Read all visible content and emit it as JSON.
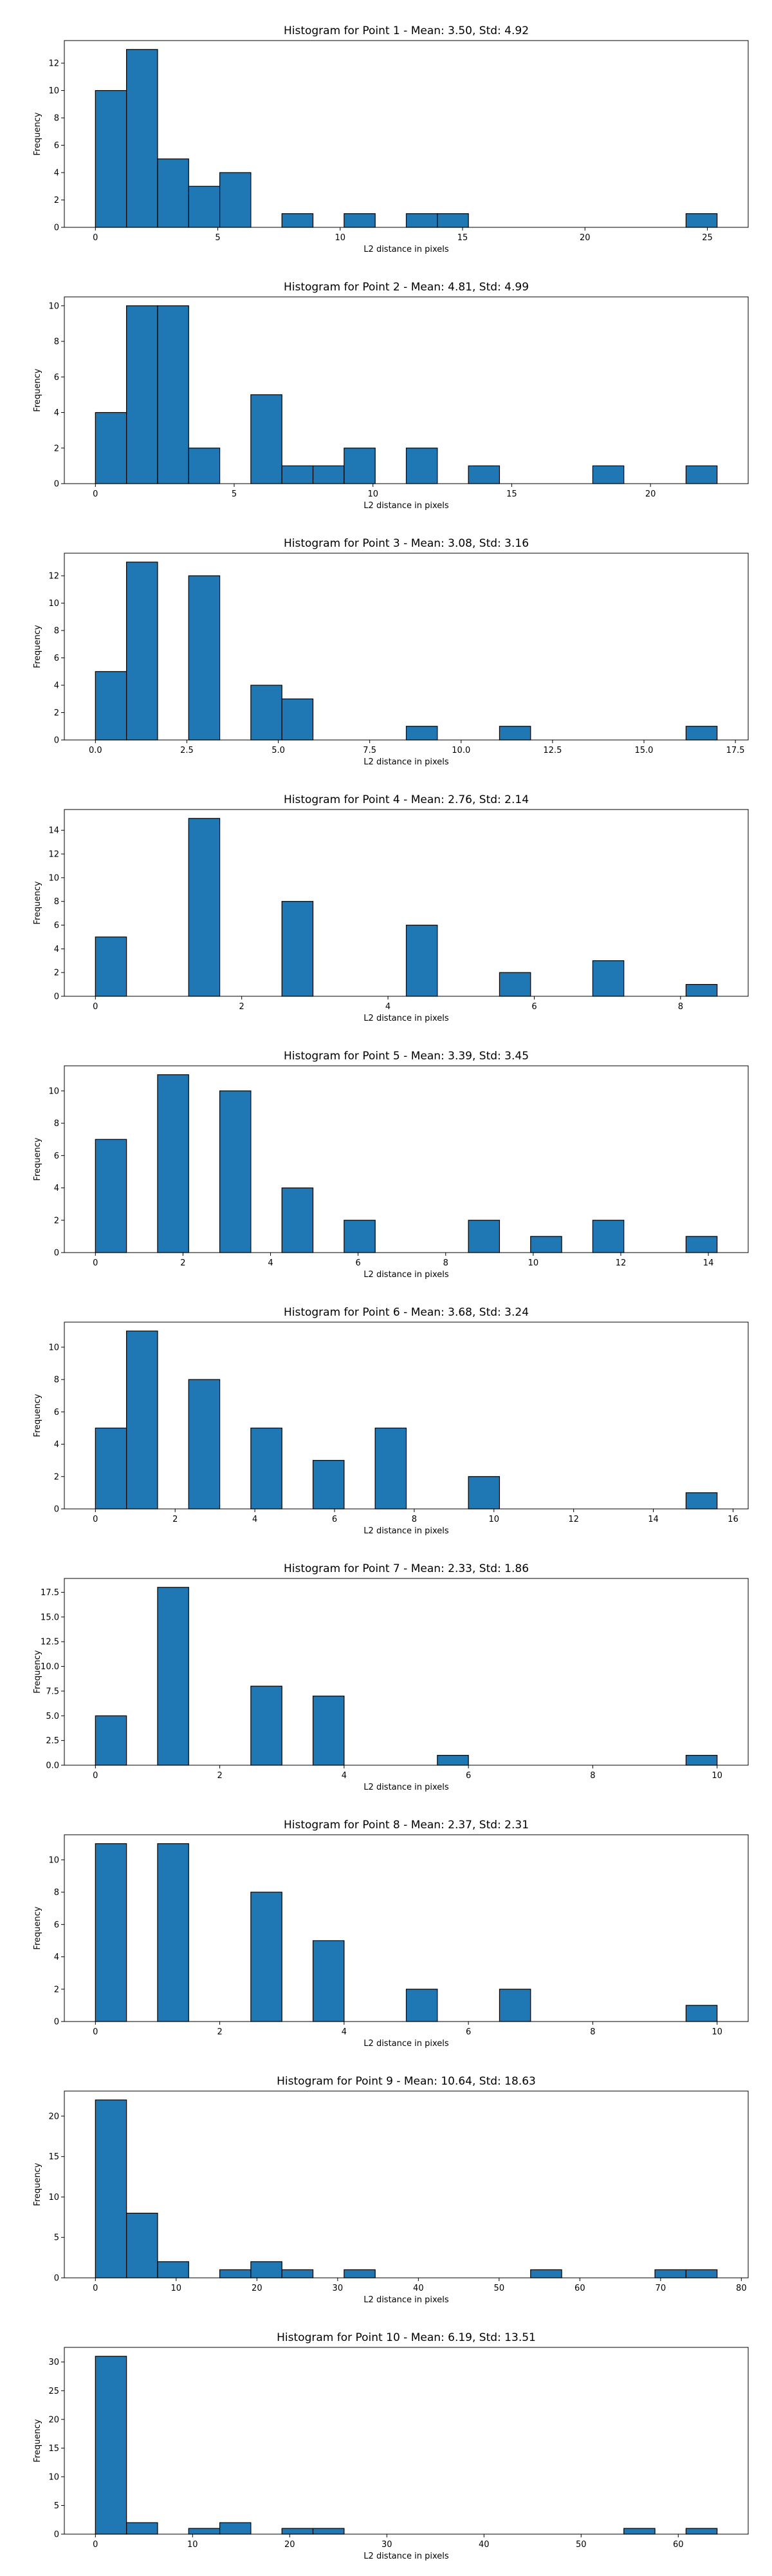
{
  "chart_data": [
    {
      "type": "bar",
      "title": "Histogram for Point 1 - Mean: 3.50, Std: 4.92",
      "xlabel": "L2 distance in pixels",
      "ylabel": "Frequency",
      "xlim": [
        -1.27,
        26.67
      ],
      "ylim": [
        0,
        13.65
      ],
      "xticks": [
        0,
        5,
        10,
        15,
        20,
        25
      ],
      "yticks": [
        0,
        2,
        4,
        6,
        8,
        10,
        12
      ],
      "bins": [
        {
          "x0": 0.0,
          "x1": 1.27,
          "count": 10
        },
        {
          "x0": 1.27,
          "x1": 2.54,
          "count": 13
        },
        {
          "x0": 2.54,
          "x1": 3.81,
          "count": 5
        },
        {
          "x0": 3.81,
          "x1": 5.08,
          "count": 3
        },
        {
          "x0": 5.08,
          "x1": 6.35,
          "count": 4
        },
        {
          "x0": 7.62,
          "x1": 8.89,
          "count": 1
        },
        {
          "x0": 10.16,
          "x1": 11.43,
          "count": 1
        },
        {
          "x0": 12.7,
          "x1": 13.97,
          "count": 1
        },
        {
          "x0": 13.97,
          "x1": 15.24,
          "count": 1
        },
        {
          "x0": 24.13,
          "x1": 25.4,
          "count": 1
        }
      ]
    },
    {
      "type": "bar",
      "title": "Histogram for Point 2 - Mean: 4.81, Std: 4.99",
      "xlabel": "L2 distance in pixels",
      "ylabel": "Frequency",
      "xlim": [
        -1.12,
        23.52
      ],
      "ylim": [
        0,
        10.5
      ],
      "xticks": [
        0,
        5,
        10,
        15,
        20
      ],
      "yticks": [
        0,
        2,
        4,
        6,
        8,
        10
      ],
      "bins": [
        {
          "x0": 0.0,
          "x1": 1.12,
          "count": 4
        },
        {
          "x0": 1.12,
          "x1": 2.24,
          "count": 10
        },
        {
          "x0": 2.24,
          "x1": 3.36,
          "count": 10
        },
        {
          "x0": 3.36,
          "x1": 4.48,
          "count": 2
        },
        {
          "x0": 5.6,
          "x1": 6.72,
          "count": 5
        },
        {
          "x0": 6.72,
          "x1": 7.84,
          "count": 1
        },
        {
          "x0": 7.84,
          "x1": 8.96,
          "count": 1
        },
        {
          "x0": 8.96,
          "x1": 10.08,
          "count": 2
        },
        {
          "x0": 11.2,
          "x1": 12.32,
          "count": 2
        },
        {
          "x0": 13.44,
          "x1": 14.56,
          "count": 1
        },
        {
          "x0": 17.92,
          "x1": 19.04,
          "count": 1
        },
        {
          "x0": 21.28,
          "x1": 22.4,
          "count": 1
        }
      ]
    },
    {
      "type": "bar",
      "title": "Histogram for Point 3 - Mean: 3.08, Std: 3.16",
      "xlabel": "L2 distance in pixels",
      "ylabel": "Frequency",
      "xlim": [
        -0.85,
        17.85
      ],
      "ylim": [
        0,
        13.65
      ],
      "xticks": [
        0.0,
        2.5,
        5.0,
        7.5,
        10.0,
        12.5,
        15.0,
        17.5
      ],
      "yticks": [
        0,
        2,
        4,
        6,
        8,
        10,
        12
      ],
      "bins": [
        {
          "x0": 0.0,
          "x1": 0.85,
          "count": 5
        },
        {
          "x0": 0.85,
          "x1": 1.7,
          "count": 13
        },
        {
          "x0": 2.55,
          "x1": 3.4,
          "count": 12
        },
        {
          "x0": 4.25,
          "x1": 5.1,
          "count": 4
        },
        {
          "x0": 5.1,
          "x1": 5.95,
          "count": 3
        },
        {
          "x0": 8.5,
          "x1": 9.35,
          "count": 1
        },
        {
          "x0": 11.05,
          "x1": 11.9,
          "count": 1
        },
        {
          "x0": 16.15,
          "x1": 17.0,
          "count": 1
        }
      ]
    },
    {
      "type": "bar",
      "title": "Histogram for Point 4 - Mean: 2.76, Std: 2.14",
      "xlabel": "L2 distance in pixels",
      "ylabel": "Frequency",
      "xlim": [
        -0.425,
        8.925
      ],
      "ylim": [
        0,
        15.75
      ],
      "xticks": [
        0,
        2,
        4,
        6,
        8
      ],
      "yticks": [
        0,
        2,
        4,
        6,
        8,
        10,
        12,
        14
      ],
      "bins": [
        {
          "x0": 0.0,
          "x1": 0.425,
          "count": 5
        },
        {
          "x0": 1.275,
          "x1": 1.7,
          "count": 15
        },
        {
          "x0": 2.55,
          "x1": 2.975,
          "count": 8
        },
        {
          "x0": 4.25,
          "x1": 4.675,
          "count": 6
        },
        {
          "x0": 5.525,
          "x1": 5.95,
          "count": 2
        },
        {
          "x0": 6.8,
          "x1": 7.225,
          "count": 3
        },
        {
          "x0": 8.075,
          "x1": 8.5,
          "count": 1
        }
      ]
    },
    {
      "type": "bar",
      "title": "Histogram for Point 5 - Mean: 3.39, Std: 3.45",
      "xlabel": "L2 distance in pixels",
      "ylabel": "Frequency",
      "xlim": [
        -0.71,
        14.91
      ],
      "ylim": [
        0,
        11.55
      ],
      "xticks": [
        0,
        2,
        4,
        6,
        8,
        10,
        12,
        14
      ],
      "yticks": [
        0,
        2,
        4,
        6,
        8,
        10
      ],
      "bins": [
        {
          "x0": 0.0,
          "x1": 0.71,
          "count": 7
        },
        {
          "x0": 1.42,
          "x1": 2.13,
          "count": 11
        },
        {
          "x0": 2.84,
          "x1": 3.55,
          "count": 10
        },
        {
          "x0": 4.26,
          "x1": 4.97,
          "count": 4
        },
        {
          "x0": 5.68,
          "x1": 6.39,
          "count": 2
        },
        {
          "x0": 8.52,
          "x1": 9.23,
          "count": 2
        },
        {
          "x0": 9.94,
          "x1": 10.65,
          "count": 1
        },
        {
          "x0": 11.36,
          "x1": 12.07,
          "count": 2
        },
        {
          "x0": 13.49,
          "x1": 14.2,
          "count": 1
        }
      ]
    },
    {
      "type": "bar",
      "title": "Histogram for Point 6 - Mean: 3.68, Std: 3.24",
      "xlabel": "L2 distance in pixels",
      "ylabel": "Frequency",
      "xlim": [
        -0.78,
        16.38
      ],
      "ylim": [
        0,
        11.55
      ],
      "xticks": [
        0,
        2,
        4,
        6,
        8,
        10,
        12,
        14,
        16
      ],
      "yticks": [
        0,
        2,
        4,
        6,
        8,
        10
      ],
      "bins": [
        {
          "x0": 0.0,
          "x1": 0.78,
          "count": 5
        },
        {
          "x0": 0.78,
          "x1": 1.56,
          "count": 11
        },
        {
          "x0": 2.34,
          "x1": 3.12,
          "count": 8
        },
        {
          "x0": 3.9,
          "x1": 4.68,
          "count": 5
        },
        {
          "x0": 5.46,
          "x1": 6.24,
          "count": 3
        },
        {
          "x0": 7.02,
          "x1": 7.8,
          "count": 5
        },
        {
          "x0": 9.36,
          "x1": 10.14,
          "count": 2
        },
        {
          "x0": 14.82,
          "x1": 15.6,
          "count": 1
        }
      ]
    },
    {
      "type": "bar",
      "title": "Histogram for Point 7 - Mean: 2.33, Std: 1.86",
      "xlabel": "L2 distance in pixels",
      "ylabel": "Frequency",
      "xlim": [
        -0.5,
        10.5
      ],
      "ylim": [
        0,
        18.9
      ],
      "xticks": [
        0,
        2,
        4,
        6,
        8,
        10
      ],
      "yticks": [
        0.0,
        2.5,
        5.0,
        7.5,
        10.0,
        12.5,
        15.0,
        17.5
      ],
      "bins": [
        {
          "x0": 0.0,
          "x1": 0.5,
          "count": 5
        },
        {
          "x0": 1.0,
          "x1": 1.5,
          "count": 18
        },
        {
          "x0": 2.5,
          "x1": 3.0,
          "count": 8
        },
        {
          "x0": 3.5,
          "x1": 4.0,
          "count": 7
        },
        {
          "x0": 5.5,
          "x1": 6.0,
          "count": 1
        },
        {
          "x0": 9.5,
          "x1": 10.0,
          "count": 1
        }
      ]
    },
    {
      "type": "bar",
      "title": "Histogram for Point 8 - Mean: 2.37, Std: 2.31",
      "xlabel": "L2 distance in pixels",
      "ylabel": "Frequency",
      "xlim": [
        -0.5,
        10.5
      ],
      "ylim": [
        0,
        11.55
      ],
      "xticks": [
        0,
        2,
        4,
        6,
        8,
        10
      ],
      "yticks": [
        0,
        2,
        4,
        6,
        8,
        10
      ],
      "bins": [
        {
          "x0": 0.0,
          "x1": 0.5,
          "count": 11
        },
        {
          "x0": 1.0,
          "x1": 1.5,
          "count": 11
        },
        {
          "x0": 2.5,
          "x1": 3.0,
          "count": 8
        },
        {
          "x0": 3.5,
          "x1": 4.0,
          "count": 5
        },
        {
          "x0": 5.0,
          "x1": 5.5,
          "count": 2
        },
        {
          "x0": 6.5,
          "x1": 7.0,
          "count": 2
        },
        {
          "x0": 9.5,
          "x1": 10.0,
          "count": 1
        }
      ]
    },
    {
      "type": "bar",
      "title": "Histogram for Point 9 - Mean: 10.64, Std: 18.63",
      "xlabel": "L2 distance in pixels",
      "ylabel": "Frequency",
      "xlim": [
        -3.85,
        80.85
      ],
      "ylim": [
        0,
        23.1
      ],
      "xticks": [
        0,
        10,
        20,
        30,
        40,
        50,
        60,
        70,
        80
      ],
      "yticks": [
        0,
        5,
        10,
        15,
        20
      ],
      "bins": [
        {
          "x0": 0.0,
          "x1": 3.85,
          "count": 22
        },
        {
          "x0": 3.85,
          "x1": 7.7,
          "count": 8
        },
        {
          "x0": 7.7,
          "x1": 11.55,
          "count": 2
        },
        {
          "x0": 15.4,
          "x1": 19.25,
          "count": 1
        },
        {
          "x0": 19.25,
          "x1": 23.1,
          "count": 2
        },
        {
          "x0": 23.1,
          "x1": 26.95,
          "count": 1
        },
        {
          "x0": 30.8,
          "x1": 34.65,
          "count": 1
        },
        {
          "x0": 53.9,
          "x1": 57.75,
          "count": 1
        },
        {
          "x0": 69.3,
          "x1": 73.15,
          "count": 1
        },
        {
          "x0": 73.15,
          "x1": 77.0,
          "count": 1
        }
      ]
    },
    {
      "type": "bar",
      "title": "Histogram for Point 10 - Mean: 6.19, Std: 13.51",
      "xlabel": "L2 distance in pixels",
      "ylabel": "Frequency",
      "xlim": [
        -3.2,
        67.2
      ],
      "ylim": [
        0,
        32.55
      ],
      "xticks": [
        0,
        10,
        20,
        30,
        40,
        50,
        60
      ],
      "yticks": [
        0,
        5,
        10,
        15,
        20,
        25,
        30
      ],
      "bins": [
        {
          "x0": 0.0,
          "x1": 3.2,
          "count": 31
        },
        {
          "x0": 3.2,
          "x1": 6.4,
          "count": 2
        },
        {
          "x0": 9.6,
          "x1": 12.8,
          "count": 1
        },
        {
          "x0": 12.8,
          "x1": 16.0,
          "count": 2
        },
        {
          "x0": 19.2,
          "x1": 22.4,
          "count": 1
        },
        {
          "x0": 22.4,
          "x1": 25.6,
          "count": 1
        },
        {
          "x0": 54.4,
          "x1": 57.6,
          "count": 1
        },
        {
          "x0": 60.8,
          "x1": 64.0,
          "count": 1
        }
      ]
    }
  ],
  "colors": {
    "bar_fill": "#1f77b4",
    "bar_edge": "#000000",
    "axis": "#000000",
    "background": "#ffffff"
  }
}
